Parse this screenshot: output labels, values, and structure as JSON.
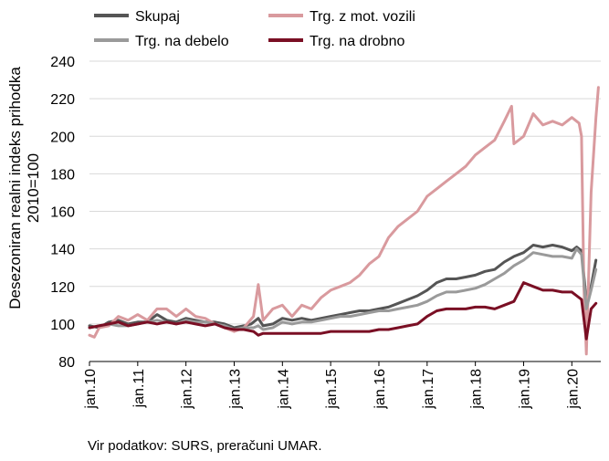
{
  "chart_data": {
    "type": "line",
    "ylabel_lines": [
      "Desezoniran realni indeks prihodka",
      "2010=100"
    ],
    "ylim": [
      80,
      240
    ],
    "yticks": [
      80,
      100,
      120,
      140,
      160,
      180,
      200,
      220,
      240
    ],
    "xlim": [
      2010.0,
      2020.6
    ],
    "xticks": [
      {
        "label": "jan.10",
        "x": 2010
      },
      {
        "label": "jan.11",
        "x": 2011
      },
      {
        "label": "jan.12",
        "x": 2012
      },
      {
        "label": "jan.13",
        "x": 2013
      },
      {
        "label": "jan.14",
        "x": 2014
      },
      {
        "label": "jan.15",
        "x": 2015
      },
      {
        "label": "jan.16",
        "x": 2016
      },
      {
        "label": "jan.17",
        "x": 2017
      },
      {
        "label": "jan.18",
        "x": 2018
      },
      {
        "label": "jan.19",
        "x": 2019
      },
      {
        "label": "jan.20",
        "x": 2020
      }
    ],
    "grid": "horizontal",
    "legend_placement": "top",
    "series": [
      {
        "name": "Skupaj",
        "color": "#555555",
        "points": [
          [
            2010.0,
            99
          ],
          [
            2010.2,
            98
          ],
          [
            2010.4,
            101
          ],
          [
            2010.6,
            102
          ],
          [
            2010.8,
            100
          ],
          [
            2011.0,
            101
          ],
          [
            2011.2,
            101
          ],
          [
            2011.4,
            105
          ],
          [
            2011.6,
            102
          ],
          [
            2011.8,
            101
          ],
          [
            2012.0,
            103
          ],
          [
            2012.2,
            102
          ],
          [
            2012.4,
            101
          ],
          [
            2012.6,
            101
          ],
          [
            2012.8,
            100
          ],
          [
            2013.0,
            98
          ],
          [
            2013.2,
            99
          ],
          [
            2013.35,
            100
          ],
          [
            2013.5,
            103
          ],
          [
            2013.6,
            99
          ],
          [
            2013.8,
            100
          ],
          [
            2014.0,
            103
          ],
          [
            2014.2,
            102
          ],
          [
            2014.4,
            103
          ],
          [
            2014.6,
            102
          ],
          [
            2014.8,
            103
          ],
          [
            2015.0,
            104
          ],
          [
            2015.2,
            105
          ],
          [
            2015.4,
            106
          ],
          [
            2015.6,
            107
          ],
          [
            2015.8,
            107
          ],
          [
            2016.0,
            108
          ],
          [
            2016.2,
            109
          ],
          [
            2016.4,
            111
          ],
          [
            2016.6,
            113
          ],
          [
            2016.8,
            115
          ],
          [
            2017.0,
            118
          ],
          [
            2017.2,
            122
          ],
          [
            2017.4,
            124
          ],
          [
            2017.6,
            124
          ],
          [
            2017.8,
            125
          ],
          [
            2018.0,
            126
          ],
          [
            2018.2,
            128
          ],
          [
            2018.4,
            129
          ],
          [
            2018.6,
            133
          ],
          [
            2018.8,
            136
          ],
          [
            2019.0,
            138
          ],
          [
            2019.2,
            142
          ],
          [
            2019.4,
            141
          ],
          [
            2019.6,
            142
          ],
          [
            2019.8,
            141
          ],
          [
            2020.0,
            139
          ],
          [
            2020.1,
            141
          ],
          [
            2020.2,
            139
          ],
          [
            2020.3,
            112
          ],
          [
            2020.4,
            120
          ],
          [
            2020.5,
            134
          ]
        ]
      },
      {
        "name": "Trg. z mot. vozili",
        "color": "#d99a9e",
        "points": [
          [
            2010.0,
            94
          ],
          [
            2010.1,
            93
          ],
          [
            2010.2,
            98
          ],
          [
            2010.4,
            99
          ],
          [
            2010.6,
            104
          ],
          [
            2010.8,
            102
          ],
          [
            2011.0,
            105
          ],
          [
            2011.2,
            102
          ],
          [
            2011.4,
            108
          ],
          [
            2011.6,
            108
          ],
          [
            2011.8,
            104
          ],
          [
            2012.0,
            108
          ],
          [
            2012.2,
            104
          ],
          [
            2012.4,
            103
          ],
          [
            2012.6,
            100
          ],
          [
            2012.8,
            98
          ],
          [
            2013.0,
            96
          ],
          [
            2013.2,
            98
          ],
          [
            2013.4,
            104
          ],
          [
            2013.5,
            121
          ],
          [
            2013.6,
            102
          ],
          [
            2013.8,
            108
          ],
          [
            2014.0,
            110
          ],
          [
            2014.2,
            104
          ],
          [
            2014.4,
            110
          ],
          [
            2014.6,
            108
          ],
          [
            2014.8,
            114
          ],
          [
            2015.0,
            118
          ],
          [
            2015.2,
            120
          ],
          [
            2015.4,
            122
          ],
          [
            2015.6,
            126
          ],
          [
            2015.8,
            132
          ],
          [
            2016.0,
            136
          ],
          [
            2016.2,
            146
          ],
          [
            2016.4,
            152
          ],
          [
            2016.6,
            156
          ],
          [
            2016.8,
            160
          ],
          [
            2017.0,
            168
          ],
          [
            2017.2,
            172
          ],
          [
            2017.4,
            176
          ],
          [
            2017.6,
            180
          ],
          [
            2017.8,
            184
          ],
          [
            2018.0,
            190
          ],
          [
            2018.2,
            194
          ],
          [
            2018.4,
            198
          ],
          [
            2018.6,
            208
          ],
          [
            2018.75,
            216
          ],
          [
            2018.8,
            196
          ],
          [
            2019.0,
            200
          ],
          [
            2019.2,
            212
          ],
          [
            2019.4,
            206
          ],
          [
            2019.6,
            208
          ],
          [
            2019.8,
            206
          ],
          [
            2020.0,
            210
          ],
          [
            2020.15,
            207
          ],
          [
            2020.2,
            200
          ],
          [
            2020.25,
            120
          ],
          [
            2020.3,
            84
          ],
          [
            2020.4,
            170
          ],
          [
            2020.5,
            210
          ],
          [
            2020.55,
            226
          ]
        ]
      },
      {
        "name": "Trg. na debelo",
        "color": "#9a9a9a",
        "points": [
          [
            2010.0,
            98
          ],
          [
            2010.2,
            99
          ],
          [
            2010.4,
            100
          ],
          [
            2010.6,
            99
          ],
          [
            2010.8,
            99
          ],
          [
            2011.0,
            100
          ],
          [
            2011.2,
            101
          ],
          [
            2011.4,
            102
          ],
          [
            2011.6,
            101
          ],
          [
            2011.8,
            100
          ],
          [
            2012.0,
            102
          ],
          [
            2012.2,
            101
          ],
          [
            2012.4,
            101
          ],
          [
            2012.6,
            100
          ],
          [
            2012.8,
            99
          ],
          [
            2013.0,
            97
          ],
          [
            2013.2,
            98
          ],
          [
            2013.4,
            98
          ],
          [
            2013.5,
            99
          ],
          [
            2013.6,
            97
          ],
          [
            2013.8,
            98
          ],
          [
            2014.0,
            101
          ],
          [
            2014.2,
            100
          ],
          [
            2014.4,
            101
          ],
          [
            2014.6,
            101
          ],
          [
            2014.8,
            102
          ],
          [
            2015.0,
            103
          ],
          [
            2015.2,
            104
          ],
          [
            2015.4,
            104
          ],
          [
            2015.6,
            105
          ],
          [
            2015.8,
            106
          ],
          [
            2016.0,
            107
          ],
          [
            2016.2,
            107
          ],
          [
            2016.4,
            108
          ],
          [
            2016.6,
            109
          ],
          [
            2016.8,
            110
          ],
          [
            2017.0,
            112
          ],
          [
            2017.2,
            115
          ],
          [
            2017.4,
            117
          ],
          [
            2017.6,
            117
          ],
          [
            2017.8,
            118
          ],
          [
            2018.0,
            119
          ],
          [
            2018.2,
            121
          ],
          [
            2018.4,
            124
          ],
          [
            2018.6,
            127
          ],
          [
            2018.8,
            131
          ],
          [
            2019.0,
            134
          ],
          [
            2019.2,
            138
          ],
          [
            2019.4,
            137
          ],
          [
            2019.6,
            136
          ],
          [
            2019.8,
            136
          ],
          [
            2020.0,
            135
          ],
          [
            2020.1,
            140
          ],
          [
            2020.2,
            137
          ],
          [
            2020.3,
            108
          ],
          [
            2020.4,
            118
          ],
          [
            2020.5,
            129
          ]
        ]
      },
      {
        "name": "Trg. na drobno",
        "color": "#7a0f24",
        "points": [
          [
            2010.0,
            98
          ],
          [
            2010.2,
            99
          ],
          [
            2010.4,
            100
          ],
          [
            2010.6,
            101
          ],
          [
            2010.8,
            99
          ],
          [
            2011.0,
            100
          ],
          [
            2011.2,
            101
          ],
          [
            2011.4,
            100
          ],
          [
            2011.6,
            101
          ],
          [
            2011.8,
            100
          ],
          [
            2012.0,
            101
          ],
          [
            2012.2,
            100
          ],
          [
            2012.4,
            99
          ],
          [
            2012.6,
            100
          ],
          [
            2012.8,
            98
          ],
          [
            2013.0,
            97
          ],
          [
            2013.2,
            97
          ],
          [
            2013.4,
            96
          ],
          [
            2013.5,
            94
          ],
          [
            2013.6,
            95
          ],
          [
            2013.8,
            95
          ],
          [
            2014.0,
            95
          ],
          [
            2014.2,
            95
          ],
          [
            2014.4,
            95
          ],
          [
            2014.6,
            95
          ],
          [
            2014.8,
            95
          ],
          [
            2015.0,
            96
          ],
          [
            2015.2,
            96
          ],
          [
            2015.4,
            96
          ],
          [
            2015.6,
            96
          ],
          [
            2015.8,
            96
          ],
          [
            2016.0,
            97
          ],
          [
            2016.2,
            97
          ],
          [
            2016.4,
            98
          ],
          [
            2016.6,
            99
          ],
          [
            2016.8,
            100
          ],
          [
            2017.0,
            104
          ],
          [
            2017.2,
            107
          ],
          [
            2017.4,
            108
          ],
          [
            2017.6,
            108
          ],
          [
            2017.8,
            108
          ],
          [
            2018.0,
            109
          ],
          [
            2018.2,
            109
          ],
          [
            2018.4,
            108
          ],
          [
            2018.6,
            110
          ],
          [
            2018.8,
            112
          ],
          [
            2019.0,
            122
          ],
          [
            2019.2,
            120
          ],
          [
            2019.4,
            118
          ],
          [
            2019.6,
            118
          ],
          [
            2019.8,
            117
          ],
          [
            2020.0,
            117
          ],
          [
            2020.1,
            115
          ],
          [
            2020.2,
            113
          ],
          [
            2020.3,
            92
          ],
          [
            2020.4,
            108
          ],
          [
            2020.5,
            111
          ]
        ]
      }
    ]
  },
  "source_note": "Vir podatkov: SURS, preračuni UMAR."
}
